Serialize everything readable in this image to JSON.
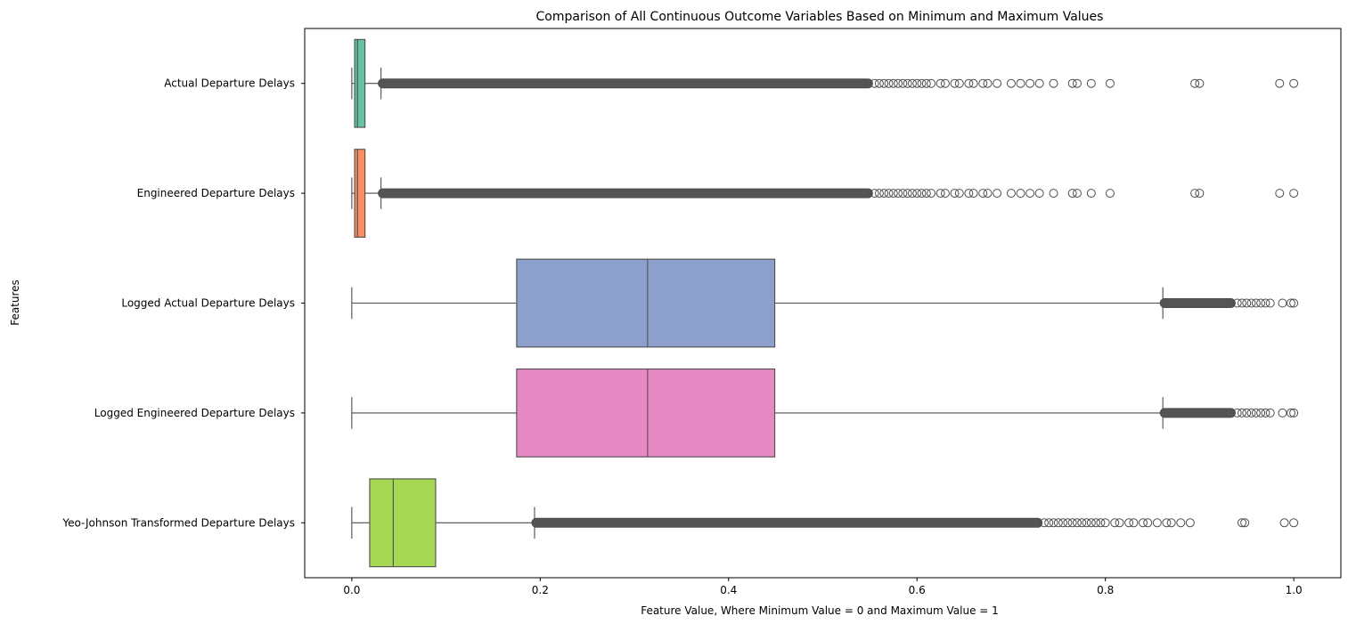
{
  "chart_data": {
    "type": "boxplot",
    "orientation": "horizontal",
    "title": "Comparison of All Continuous Outcome Variables Based on Minimum and Maximum Values",
    "xlabel": "Feature Value, Where Minimum Value = 0 and Maximum Value = 1",
    "ylabel": "Features",
    "xlim": [
      -0.05,
      1.05
    ],
    "xticks": [
      0.0,
      0.2,
      0.4,
      0.6,
      0.8,
      1.0
    ],
    "xtick_labels": [
      "0.0",
      "0.2",
      "0.4",
      "0.6",
      "0.8",
      "1.0"
    ],
    "grid": false,
    "series": [
      {
        "name": "Actual Departure Delays",
        "color": "#66c2a5",
        "whisker_low": 0.0,
        "q1": 0.003,
        "median": 0.006,
        "q3": 0.014,
        "whisker_high": 0.031,
        "dense_outliers": [
          0.031,
          0.55
        ],
        "outliers": [
          0.555,
          0.56,
          0.565,
          0.57,
          0.575,
          0.58,
          0.585,
          0.59,
          0.595,
          0.6,
          0.605,
          0.61,
          0.615,
          0.625,
          0.63,
          0.64,
          0.645,
          0.655,
          0.66,
          0.67,
          0.675,
          0.685,
          0.7,
          0.71,
          0.72,
          0.73,
          0.745,
          0.765,
          0.77,
          0.785,
          0.805,
          0.895,
          0.9,
          0.985,
          1.0
        ]
      },
      {
        "name": "Engineered Departure Delays",
        "color": "#fc8d62",
        "whisker_low": 0.0,
        "q1": 0.003,
        "median": 0.006,
        "q3": 0.014,
        "whisker_high": 0.031,
        "dense_outliers": [
          0.031,
          0.55
        ],
        "outliers": [
          0.555,
          0.56,
          0.565,
          0.57,
          0.575,
          0.58,
          0.585,
          0.59,
          0.595,
          0.6,
          0.605,
          0.61,
          0.615,
          0.625,
          0.63,
          0.64,
          0.645,
          0.655,
          0.66,
          0.67,
          0.675,
          0.685,
          0.7,
          0.71,
          0.72,
          0.73,
          0.745,
          0.765,
          0.77,
          0.785,
          0.805,
          0.895,
          0.9,
          0.985,
          1.0
        ]
      },
      {
        "name": "Logged Actual Departure Delays",
        "color": "#8da0cb",
        "whisker_low": 0.0,
        "q1": 0.175,
        "median": 0.314,
        "q3": 0.449,
        "whisker_high": 0.861,
        "dense_outliers": [
          0.861,
          0.935
        ],
        "outliers": [
          0.94,
          0.945,
          0.95,
          0.955,
          0.96,
          0.965,
          0.97,
          0.975,
          0.988,
          0.997,
          1.0
        ]
      },
      {
        "name": "Logged Engineered Departure Delays",
        "color": "#e78ac3",
        "whisker_low": 0.0,
        "q1": 0.175,
        "median": 0.314,
        "q3": 0.449,
        "whisker_high": 0.861,
        "dense_outliers": [
          0.861,
          0.935
        ],
        "outliers": [
          0.94,
          0.945,
          0.95,
          0.955,
          0.96,
          0.965,
          0.97,
          0.975,
          0.988,
          0.997,
          1.0
        ]
      },
      {
        "name": "Yeo-Johnson Transformed Departure Delays",
        "color": "#a6d854",
        "whisker_low": 0.0,
        "q1": 0.019,
        "median": 0.044,
        "q3": 0.089,
        "whisker_high": 0.194,
        "dense_outliers": [
          0.194,
          0.73
        ],
        "outliers": [
          0.735,
          0.74,
          0.745,
          0.75,
          0.755,
          0.76,
          0.765,
          0.77,
          0.775,
          0.78,
          0.785,
          0.79,
          0.795,
          0.8,
          0.81,
          0.815,
          0.825,
          0.83,
          0.84,
          0.845,
          0.855,
          0.865,
          0.87,
          0.88,
          0.89,
          0.945,
          0.948,
          0.99,
          1.0
        ]
      }
    ]
  }
}
